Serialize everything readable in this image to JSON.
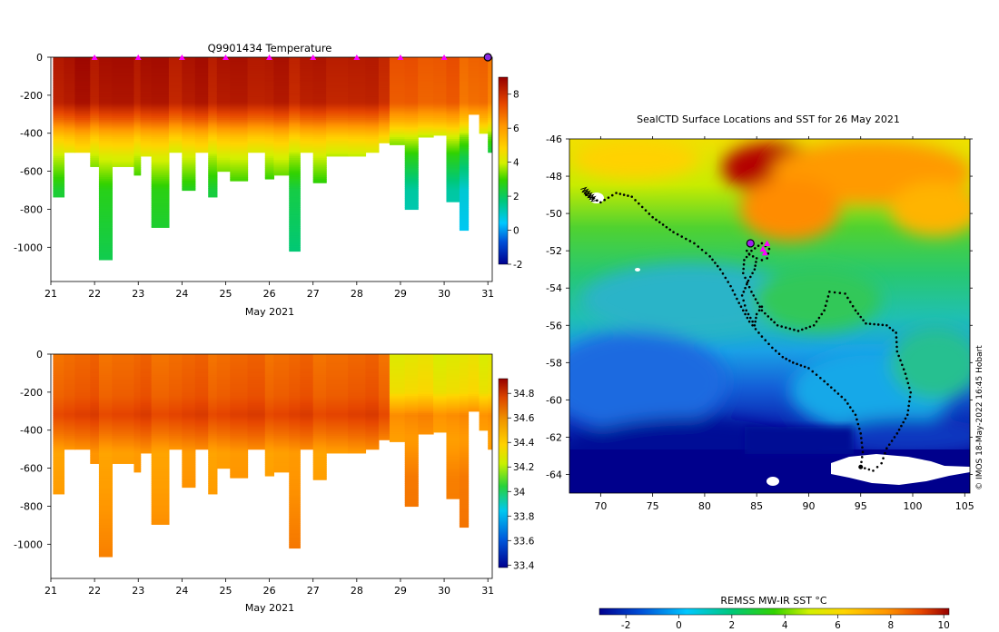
{
  "chart_data": [
    {
      "type": "heatmap",
      "title": "Q9901434  Temperature",
      "xlabel": "May 2021",
      "x_ticks": [
        "21",
        "22",
        "23",
        "24",
        "25",
        "26",
        "27",
        "28",
        "29",
        "30",
        "31"
      ],
      "y_ticks": [
        "0",
        "-200",
        "-400",
        "-600",
        "-800",
        "-1000"
      ],
      "xlim": [
        21,
        31.1
      ],
      "ylim": [
        -1180,
        0
      ],
      "profile_markers_day": [
        22,
        23,
        24,
        25,
        26,
        27,
        28,
        29,
        30
      ],
      "colorbar": {
        "ticks": [
          "8",
          "6",
          "4",
          "2",
          "0",
          "-2"
        ],
        "range": [
          -2,
          9
        ],
        "label": ""
      },
      "profiles": [
        {
          "t": 21.05,
          "depth": 735,
          "surf": 8.6
        },
        {
          "t": 21.3,
          "depth": 500,
          "surf": 8.6
        },
        {
          "t": 21.55,
          "depth": 500,
          "surf": 8.7
        },
        {
          "t": 21.9,
          "depth": 575,
          "surf": 8.6
        },
        {
          "t": 22.1,
          "depth": 1065,
          "surf": 8.7
        },
        {
          "t": 22.4,
          "depth": 575,
          "surf": 8.6
        },
        {
          "t": 22.9,
          "depth": 620,
          "surf": 8.6
        },
        {
          "t": 23.05,
          "depth": 520,
          "surf": 8.7
        },
        {
          "t": 23.3,
          "depth": 895,
          "surf": 8.6
        },
        {
          "t": 23.7,
          "depth": 500,
          "surf": 8.5
        },
        {
          "t": 24.0,
          "depth": 700,
          "surf": 8.6
        },
        {
          "t": 24.3,
          "depth": 500,
          "surf": 8.6
        },
        {
          "t": 24.6,
          "depth": 735,
          "surf": 8.5
        },
        {
          "t": 24.8,
          "depth": 600,
          "surf": 8.6
        },
        {
          "t": 25.1,
          "depth": 650,
          "surf": 8.5
        },
        {
          "t": 25.5,
          "depth": 500,
          "surf": 8.6
        },
        {
          "t": 25.9,
          "depth": 640,
          "surf": 8.5
        },
        {
          "t": 26.1,
          "depth": 620,
          "surf": 8.5
        },
        {
          "t": 26.45,
          "depth": 1020,
          "surf": 8.4
        },
        {
          "t": 26.7,
          "depth": 500,
          "surf": 8.5
        },
        {
          "t": 27.0,
          "depth": 660,
          "surf": 8.4
        },
        {
          "t": 27.3,
          "depth": 520,
          "surf": 8.5
        },
        {
          "t": 27.8,
          "depth": 520,
          "surf": 8.4
        },
        {
          "t": 28.2,
          "depth": 500,
          "surf": 8.3
        },
        {
          "t": 28.5,
          "depth": 450,
          "surf": 8.3
        },
        {
          "t": 28.75,
          "depth": 460,
          "surf": 7.3
        },
        {
          "t": 29.1,
          "depth": 800,
          "surf": 7.2
        },
        {
          "t": 29.4,
          "depth": 420,
          "surf": 7.3
        },
        {
          "t": 29.75,
          "depth": 410,
          "surf": 7.2
        },
        {
          "t": 30.05,
          "depth": 760,
          "surf": 7.2
        },
        {
          "t": 30.35,
          "depth": 910,
          "surf": 7.0
        },
        {
          "t": 30.55,
          "depth": 300,
          "surf": 7.0
        },
        {
          "t": 30.8,
          "depth": 400,
          "surf": 6.9
        },
        {
          "t": 31.0,
          "depth": 500,
          "surf": 6.8
        }
      ]
    },
    {
      "type": "heatmap",
      "title": "",
      "xlabel": "May 2021",
      "x_ticks": [
        "21",
        "22",
        "23",
        "24",
        "25",
        "26",
        "27",
        "28",
        "29",
        "30",
        "31"
      ],
      "y_ticks": [
        "0",
        "-200",
        "-400",
        "-600",
        "-800",
        "-1000"
      ],
      "xlim": [
        21,
        31.1
      ],
      "ylim": [
        -1180,
        0
      ],
      "colorbar": {
        "ticks": [
          "34.8",
          "34.6",
          "34.4",
          "34.2",
          "34",
          "33.8",
          "33.6",
          "33.4"
        ],
        "range": [
          33.38,
          34.92
        ],
        "label": ""
      }
    },
    {
      "type": "heatmap",
      "title": "SealCTD Surface Locations and SST for 26 May 2021",
      "x_ticks": [
        "70",
        "75",
        "80",
        "85",
        "90",
        "95",
        "100",
        "105"
      ],
      "y_ticks": [
        "-46",
        "-48",
        "-50",
        "-52",
        "-54",
        "-56",
        "-58",
        "-60",
        "-62",
        "-64"
      ],
      "xlim": [
        67,
        105.5
      ],
      "ylim": [
        -65,
        -46
      ],
      "colorbar": {
        "label": "REMSS MW-IR SST °C",
        "ticks": [
          "-2",
          "0",
          "2",
          "4",
          "6",
          "8",
          "10"
        ],
        "range": [
          -3,
          10.2
        ]
      },
      "credit": "© IMOS 18-May-2022 16:45 Hobart",
      "track": [
        [
          68.6,
          -49.0
        ],
        [
          70.0,
          -49.4
        ],
        [
          71.5,
          -48.9
        ],
        [
          73.0,
          -49.1
        ],
        [
          75.0,
          -50.2
        ],
        [
          77.0,
          -51.0
        ],
        [
          79.0,
          -51.6
        ],
        [
          80.5,
          -52.3
        ],
        [
          81.5,
          -53.0
        ],
        [
          82.5,
          -53.9
        ],
        [
          83.3,
          -54.8
        ],
        [
          84.3,
          -55.8
        ],
        [
          85.5,
          -56.6
        ],
        [
          86.5,
          -57.2
        ],
        [
          87.5,
          -57.7
        ],
        [
          88.5,
          -58.0
        ],
        [
          90.0,
          -58.3
        ],
        [
          91.5,
          -59.0
        ],
        [
          92.5,
          -59.5
        ],
        [
          93.5,
          -60.0
        ],
        [
          94.5,
          -60.8
        ],
        [
          95.0,
          -61.8
        ],
        [
          95.2,
          -62.8
        ],
        [
          95.0,
          -63.6
        ],
        [
          96.2,
          -63.8
        ],
        [
          97.0,
          -63.4
        ],
        [
          97.5,
          -62.6
        ],
        [
          98.5,
          -61.8
        ],
        [
          99.5,
          -60.8
        ],
        [
          99.8,
          -59.6
        ],
        [
          99.3,
          -58.6
        ],
        [
          98.5,
          -57.4
        ],
        [
          98.4,
          -56.4
        ],
        [
          97.5,
          -56.0
        ],
        [
          95.5,
          -55.9
        ],
        [
          94.5,
          -55.2
        ],
        [
          93.5,
          -54.3
        ],
        [
          92.0,
          -54.2
        ],
        [
          91.5,
          -55.2
        ],
        [
          90.5,
          -56.0
        ],
        [
          89.0,
          -56.3
        ],
        [
          87.0,
          -56.0
        ],
        [
          85.5,
          -55.2
        ],
        [
          84.5,
          -54.2
        ],
        [
          83.7,
          -53.2
        ],
        [
          83.8,
          -52.5
        ],
        [
          84.5,
          -52.0
        ],
        [
          85.5,
          -51.6
        ],
        [
          86.2,
          -51.9
        ],
        [
          86.0,
          -52.4
        ],
        [
          85.0,
          -52.6
        ]
      ],
      "track2": [
        [
          85.5,
          -55.0
        ],
        [
          85.0,
          -55.4
        ],
        [
          84.8,
          -56.0
        ],
        [
          84.0,
          -55.2
        ],
        [
          83.6,
          -54.4
        ],
        [
          84.2,
          -53.6
        ],
        [
          84.8,
          -53.0
        ],
        [
          85.0,
          -52.4
        ],
        [
          84.3,
          -52.2
        ],
        [
          83.8,
          -51.8
        ]
      ],
      "latest_position": [
        84.4,
        -51.6
      ],
      "recent_positions": [
        [
          85.6,
          -51.9
        ],
        [
          86.0,
          -51.6
        ],
        [
          85.8,
          -52.1
        ]
      ]
    }
  ]
}
